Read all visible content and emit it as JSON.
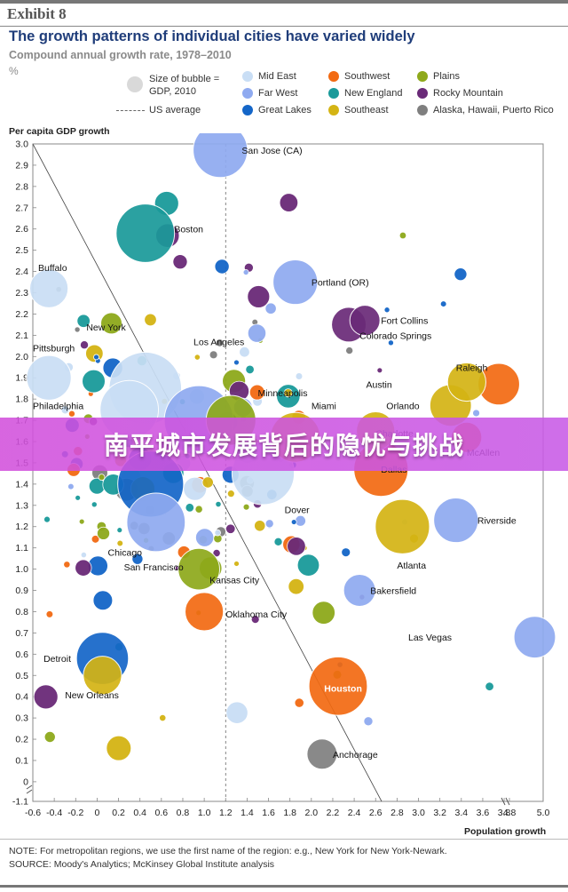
{
  "exhibit_label": "Exhibit 8",
  "title": "The growth patterns of individual cities have varied widely",
  "subtitle": "Compound annual growth rate, 1978–2010",
  "unit": "%",
  "legend": {
    "size_note_line1": "Size of bubble =",
    "size_note_line2": "GDP, 2010",
    "us_average": "US average",
    "regions": [
      {
        "name": "Mid East",
        "color": "#c9def5"
      },
      {
        "name": "Southwest",
        "color": "#f26a12"
      },
      {
        "name": "Plains",
        "color": "#8ea91b"
      },
      {
        "name": "Far West",
        "color": "#8faaf0"
      },
      {
        "name": "New England",
        "color": "#1a9a9a"
      },
      {
        "name": "Rocky Mountain",
        "color": "#6a2a78"
      },
      {
        "name": "Great Lakes",
        "color": "#1466c8"
      },
      {
        "name": "Southeast",
        "color": "#d4b414"
      },
      {
        "name": "Alaska, Hawaii, Puerto Rico",
        "color": "#7f7f7f"
      }
    ]
  },
  "chart_data": {
    "type": "scatter",
    "ylabel": "Per capita GDP growth",
    "xlabel": "Population growth",
    "x_ticks": [
      "-0.6",
      "-0.4",
      "-0.2",
      "0",
      "0.2",
      "0.4",
      "0.6",
      "0.8",
      "1.0",
      "1.2",
      "1.4",
      "1.6",
      "1.8",
      "2.0",
      "2.2",
      "2.4",
      "2.6",
      "2.8",
      "3.0",
      "3.2",
      "3.4",
      "3.6",
      "3.8",
      "4.8",
      "5.0"
    ],
    "y_ticks": [
      "3.0",
      "2.9",
      "2.8",
      "2.7",
      "2.6",
      "2.5",
      "2.4",
      "2.3",
      "2.2",
      "2.1",
      "2.0",
      "1.9",
      "1.8",
      "1.7",
      "1.6",
      "1.5",
      "1.4",
      "1.3",
      "1.2",
      "1.1",
      "1.0",
      "0.9",
      "0.8",
      "0.7",
      "0.6",
      "0.5",
      "0.4",
      "0.3",
      "0.2",
      "0.1",
      "0",
      "-1.1"
    ],
    "xlim": [
      -0.6,
      5.0
    ],
    "ylim": [
      -1.1,
      3.0
    ],
    "axis_breaks": "x axis broken between 3.8 and 4.8; y axis broken between 0 and -1.1",
    "us_average": {
      "x": 1.2,
      "y": 1.7
    },
    "grid": false,
    "series": [
      {
        "name": "San Jose (CA)",
        "region": "Far West",
        "x": 1.15,
        "y": 2.97,
        "gdp": 5
      },
      {
        "name": "Boston",
        "region": "New England",
        "x": 0.45,
        "y": 2.58,
        "gdp": 6
      },
      {
        "name": "Buffalo",
        "region": "Mid East",
        "x": -0.45,
        "y": 2.32,
        "gdp": 2
      },
      {
        "name": "Portland (OR)",
        "region": "Far West",
        "x": 1.85,
        "y": 2.35,
        "gdp": 3
      },
      {
        "name": "New York",
        "region": "Mid East",
        "x": 0.45,
        "y": 1.85,
        "gdp": 10
      },
      {
        "name": "Los Angeles",
        "region": "Far West",
        "x": 0.95,
        "y": 1.7,
        "gdp": 9
      },
      {
        "name": "Fort Collins",
        "region": "Rocky Mountain",
        "x": 2.5,
        "y": 2.17,
        "gdp": 1
      },
      {
        "name": "Colorado Springs",
        "region": "Rocky Mountain",
        "x": 2.35,
        "y": 2.15,
        "gdp": 1.5
      },
      {
        "name": "Pittsburgh",
        "region": "Mid East",
        "x": -0.45,
        "y": 1.9,
        "gdp": 3
      },
      {
        "name": "Philadelphia",
        "region": "Mid East",
        "x": 0.3,
        "y": 1.75,
        "gdp": 6
      },
      {
        "name": "Raleigh",
        "region": "Southeast",
        "x": 3.45,
        "y": 1.88,
        "gdp": 2
      },
      {
        "name": "Austin",
        "region": "Southwest",
        "x": 3.75,
        "y": 1.87,
        "gdp": 2.5
      },
      {
        "name": "Minneapolis",
        "region": "Plains",
        "x": 1.25,
        "y": 1.7,
        "gdp": 4
      },
      {
        "name": "Miami",
        "region": "Southeast",
        "x": 1.85,
        "y": 1.62,
        "gdp": 4
      },
      {
        "name": "Orlando",
        "region": "Southeast",
        "x": 3.3,
        "y": 1.77,
        "gdp": 2.5
      },
      {
        "name": "Charlotte",
        "region": "Southeast",
        "x": 2.6,
        "y": 1.65,
        "gdp": 2
      },
      {
        "name": "Dallas",
        "region": "Southwest",
        "x": 2.65,
        "y": 1.47,
        "gdp": 5
      },
      {
        "name": "McAllen",
        "region": "Southwest",
        "x": 3.45,
        "y": 1.62,
        "gdp": 1
      },
      {
        "name": "Dover",
        "region": "Mid East",
        "x": 1.55,
        "y": 1.45,
        "gdp": 7
      },
      {
        "name": "Chicago",
        "region": "Great Lakes",
        "x": 0.5,
        "y": 1.4,
        "gdp": 8
      },
      {
        "name": "San Francisco",
        "region": "Far West",
        "x": 0.55,
        "y": 1.22,
        "gdp": 6
      },
      {
        "name": "Riverside",
        "region": "Far West",
        "x": 3.35,
        "y": 1.23,
        "gdp": 3
      },
      {
        "name": "Atlanta",
        "region": "Southeast",
        "x": 2.85,
        "y": 1.2,
        "gdp": 5
      },
      {
        "name": "Kansas City",
        "region": "Plains",
        "x": 0.95,
        "y": 1.0,
        "gdp": 2.5
      },
      {
        "name": "Bakersfield",
        "region": "Far West",
        "x": 2.45,
        "y": 0.9,
        "gdp": 1.2
      },
      {
        "name": "Oklahoma City",
        "region": "Southwest",
        "x": 1.0,
        "y": 0.8,
        "gdp": 2
      },
      {
        "name": "Las Vegas",
        "region": "Far West",
        "x": 4.95,
        "y": 0.68,
        "gdp": 2.5
      },
      {
        "name": "Detroit",
        "region": "Great Lakes",
        "x": 0.05,
        "y": 0.58,
        "gdp": 4.5
      },
      {
        "name": "New Orleans",
        "region": "Southeast",
        "x": 0.05,
        "y": 0.5,
        "gdp": 2
      },
      {
        "name": "Houston",
        "region": "Southwest",
        "x": 2.25,
        "y": 0.45,
        "gdp": 6
      },
      {
        "name": "Anchorage",
        "region": "Alaska, Hawaii, Puerto Rico",
        "x": 2.1,
        "y": 0.13,
        "gdp": 1
      }
    ]
  },
  "labels": [
    {
      "text": "San Jose (CA)",
      "x": 1.35,
      "y": 2.97
    },
    {
      "text": "Boston",
      "x": 0.72,
      "y": 2.6
    },
    {
      "text": "Buffalo",
      "x": -0.55,
      "y": 2.42
    },
    {
      "text": "Portland (OR)",
      "x": 2.0,
      "y": 2.35
    },
    {
      "text": "New York",
      "x": -0.1,
      "y": 2.14
    },
    {
      "text": "Los Angeles",
      "x": 0.9,
      "y": 2.07
    },
    {
      "text": "Fort Collins",
      "x": 2.65,
      "y": 2.17
    },
    {
      "text": "Colorado Springs",
      "x": 2.45,
      "y": 2.1
    },
    {
      "text": "Pittsburgh",
      "x": -0.6,
      "y": 2.04
    },
    {
      "text": "Raleigh",
      "x": 3.35,
      "y": 1.95
    },
    {
      "text": "Austin",
      "x": 3.95,
      "y": 1.87
    },
    {
      "text": "Minneapolis",
      "x": 1.5,
      "y": 1.83
    },
    {
      "text": "Philadelphia",
      "x": -0.6,
      "y": 1.77
    },
    {
      "text": "Miami",
      "x": 2.0,
      "y": 1.77
    },
    {
      "text": "Orlando",
      "x": 2.7,
      "y": 1.77
    },
    {
      "text": "Charlotte",
      "x": 2.6,
      "y": 1.64
    },
    {
      "text": "Dallas",
      "x": 2.65,
      "y": 1.47
    },
    {
      "text": "McAllen",
      "x": 3.45,
      "y": 1.55
    },
    {
      "text": "Dover",
      "x": 1.75,
      "y": 1.28
    },
    {
      "text": "Riverside",
      "x": 3.55,
      "y": 1.23
    },
    {
      "text": "Chicago",
      "x": 0.1,
      "y": 1.08
    },
    {
      "text": "San Francisco",
      "x": 0.25,
      "y": 1.01
    },
    {
      "text": "Atlanta",
      "x": 2.8,
      "y": 1.02
    },
    {
      "text": "Kansas City",
      "x": 1.05,
      "y": 0.95
    },
    {
      "text": "Bakersfield",
      "x": 2.55,
      "y": 0.9
    },
    {
      "text": "Oklahoma City",
      "x": 1.2,
      "y": 0.79
    },
    {
      "text": "Las Vegas",
      "x": 4.2,
      "y": 0.68
    },
    {
      "text": "Detroit",
      "x": -0.5,
      "y": 0.58
    },
    {
      "text": "New Orleans",
      "x": -0.3,
      "y": 0.41
    },
    {
      "text": "Houston",
      "x": 2.12,
      "y": 0.44
    },
    {
      "text": "Anchorage",
      "x": 2.2,
      "y": 0.13
    }
  ],
  "note": "NOTE: For metropolitan regions, we use the first name of the region: e.g., New York for New York-Newark.",
  "source": "SOURCE: Moody's Analytics; McKinsey Global Institute analysis",
  "banner_text": "南平城市发展背后的隐忧与挑战"
}
